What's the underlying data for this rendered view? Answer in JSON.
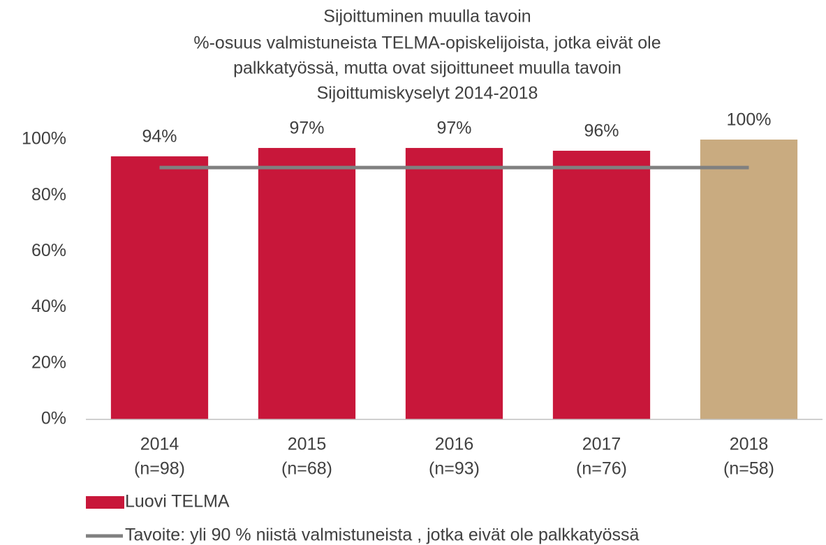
{
  "chart_data": {
    "type": "bar",
    "title": [
      "Sijoittuminen muulla tavoin",
      "%-osuus valmistuneista TELMA-opiskelijoista, jotka eivät ole",
      "palkkatyössä, mutta ovat sijoittuneet muulla tavoin",
      "Sijoittumiskyselyt 2014-2018"
    ],
    "categories": [
      [
        "2014",
        "(n=98)"
      ],
      [
        "2015",
        "(n=68)"
      ],
      [
        "2016",
        "(n=93)"
      ],
      [
        "2017",
        "(n=76)"
      ],
      [
        "2018",
        "(n=58)"
      ]
    ],
    "series": [
      {
        "name": "Luovi TELMA",
        "type": "bar",
        "color": "#c8173a",
        "colors": [
          "#c8173a",
          "#c8173a",
          "#c8173a",
          "#c8173a",
          "#c9ab80"
        ],
        "values": [
          94,
          97,
          97,
          96,
          100
        ],
        "value_labels": [
          "94%",
          "97%",
          "97%",
          "96%",
          "100%"
        ]
      },
      {
        "name": "Tavoite: yli 90 % niistä valmistuneista , jotka eivät ole palkkatyössä",
        "type": "line",
        "color": "#808080",
        "values": [
          90,
          90,
          90,
          90,
          90
        ]
      }
    ],
    "ylim": [
      0,
      100
    ],
    "yticks": [
      {
        "value": 0,
        "label": "0%"
      },
      {
        "value": 20,
        "label": "20%"
      },
      {
        "value": 40,
        "label": "40%"
      },
      {
        "value": 60,
        "label": "60%"
      },
      {
        "value": 80,
        "label": "80%"
      },
      {
        "value": 100,
        "label": "100%"
      }
    ],
    "grid": false
  }
}
